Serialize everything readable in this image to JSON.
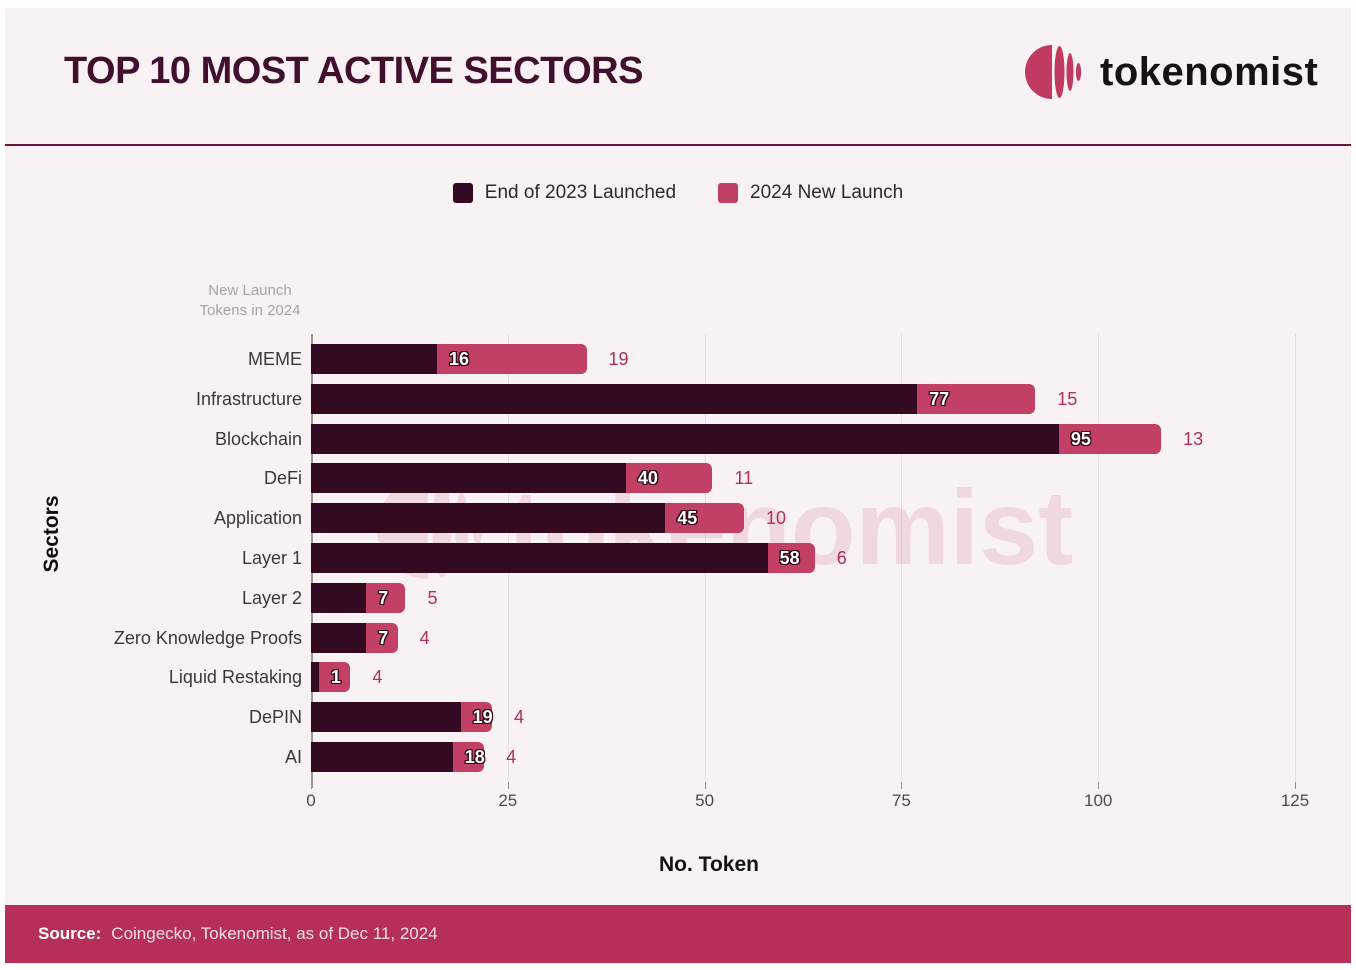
{
  "header": {
    "title": "TOP 10 MOST ACTIVE SECTORS",
    "brand": "tokenomist"
  },
  "legend": [
    {
      "label": "End of 2023 Launched",
      "color": "#330a21"
    },
    {
      "label": "2024 New Launch",
      "color": "#c24063"
    }
  ],
  "labels": {
    "annotation_line1": "New Launch",
    "annotation_line2": "Tokens in 2024"
  },
  "watermark": {
    "text": "tokenomist"
  },
  "chart_data": {
    "type": "bar",
    "orientation": "horizontal",
    "stacked": true,
    "title": "TOP 10 MOST ACTIVE SECTORS",
    "categories": [
      "MEME",
      "Infrastructure",
      "Blockchain",
      "DeFi",
      "Application",
      "Layer 1",
      "Layer 2",
      "Zero Knowledge Proofs",
      "Liquid Restaking",
      "DePIN",
      "AI"
    ],
    "series": [
      {
        "name": "End of 2023 Launched",
        "color": "#330a21",
        "values": [
          16,
          77,
          95,
          40,
          45,
          58,
          7,
          7,
          1,
          19,
          18
        ]
      },
      {
        "name": "2024 New Launch",
        "color": "#c24063",
        "values": [
          19,
          15,
          13,
          11,
          10,
          6,
          5,
          4,
          4,
          4,
          4
        ]
      }
    ],
    "xlabel": "No. Token",
    "ylabel": "Sectors",
    "x_ticks": [
      0,
      25,
      50,
      75,
      100,
      125
    ],
    "xlim": [
      0,
      125
    ],
    "grid": true,
    "legend_position": "top"
  },
  "footer": {
    "source_label": "Source:",
    "source_text": "Coingecko, Tokenomist, as of Dec 11, 2024"
  },
  "colors": {
    "background": "#f9f2f5",
    "dark_bar": "#330a21",
    "pink_bar": "#c24063",
    "pink_value_text": "#b22f5b",
    "footer_bar": "#b52f56",
    "divider": "#6d1340",
    "title_text": "#40102e",
    "logo_mark": "#c13a60"
  }
}
